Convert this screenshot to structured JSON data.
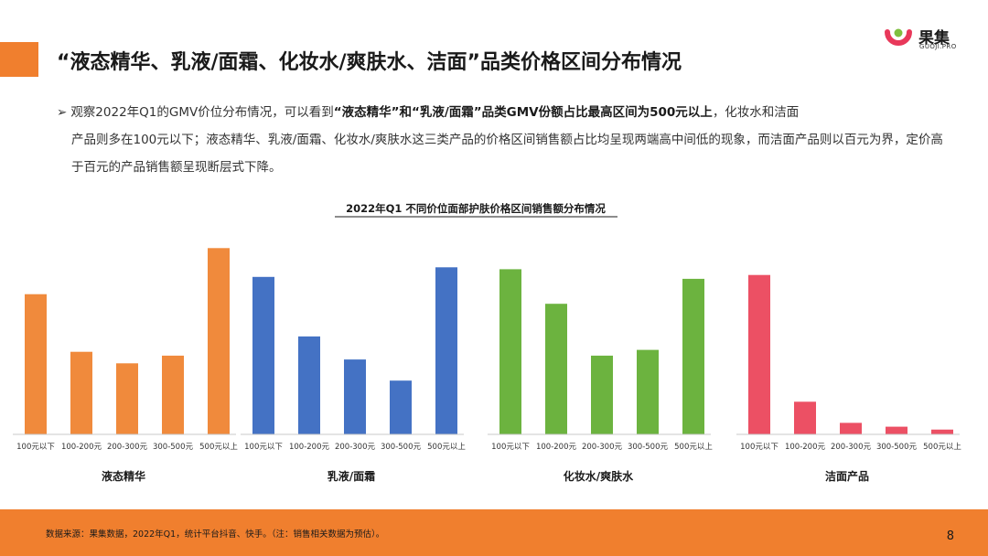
{
  "header": {
    "title": "“液态精华、乳液/面霜、化妆水/爽肤水、洁面”品类价格区间分布情况",
    "logo_name": "果集",
    "logo_sub": "GUOJI.PRO"
  },
  "summary": {
    "bullet": "➢",
    "seg1": "观察2022年Q1的GMV价位分布情况，可以看到",
    "seg2": "“液态精华”和“乳液/面霜”品类GMV份额占比最高区间为500元以上",
    "seg3": "，化妆水和洁面",
    "line2": "产品则多在100元以下；液态精华、乳液/面霜、化妆水/爽肤水这三类产品的价格区间销售额占比均呈现两端高中间低的现象，而洁面产品则以百元为界，定价高于百元的产品销售额呈现断层式下降。"
  },
  "chart_data": {
    "type": "bar",
    "title": "2022年Q1 不同价位面部护肤价格区间销售额分布情况",
    "categories": [
      "100元以下",
      "100-200元",
      "200-300元",
      "300-500元",
      "500元以上"
    ],
    "groups": [
      {
        "name": "液态精华",
        "color": "#f08a3c",
        "values": [
          73,
          43,
          37,
          41,
          97
        ]
      },
      {
        "name": "乳液/面霜",
        "color": "#4472c4",
        "values": [
          82,
          51,
          39,
          28,
          87
        ]
      },
      {
        "name": "化妆水/爽肤水",
        "color": "#6cb33f",
        "values": [
          86,
          68,
          41,
          44,
          81
        ]
      },
      {
        "name": "洁面产品",
        "color": "#ec5064",
        "values": [
          83,
          17,
          6,
          4,
          2.5
        ]
      }
    ],
    "ylim": [
      0,
      100
    ],
    "grid": false,
    "legend": "none"
  },
  "footer": {
    "source": "数据来源：果集数据，2022年Q1，统计平台抖音、快手。（注：销售相关数据为预估）。",
    "page_number": "8"
  }
}
